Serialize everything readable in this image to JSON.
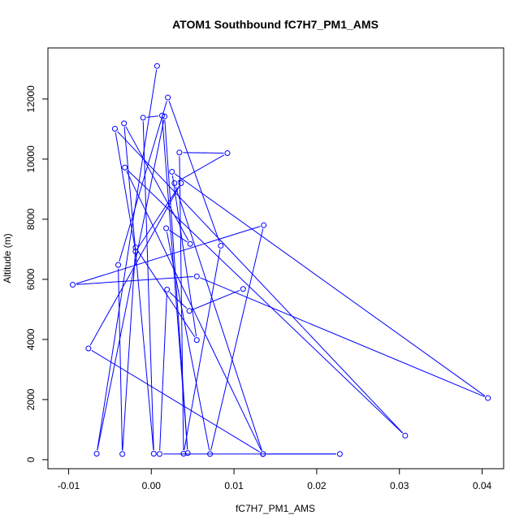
{
  "chart_data": {
    "type": "scatter",
    "title": "ATOM1 Southbound fC7H7_PM1_AMS",
    "xlabel": "fC7H7_PM1_AMS",
    "ylabel": "Altitude (m)",
    "xlim": [
      -0.0125,
      0.0426
    ],
    "ylim": [
      -300,
      13700
    ],
    "x_ticks": [
      -0.01,
      0.0,
      0.01,
      0.02,
      0.03,
      0.04
    ],
    "x_tick_labels": [
      "-0.01",
      "0.00",
      "0.01",
      "0.02",
      "0.03",
      "0.04"
    ],
    "y_ticks": [
      0,
      2000,
      4000,
      6000,
      8000,
      10000,
      12000
    ],
    "y_tick_labels": [
      "0",
      "2000",
      "4000",
      "6000",
      "8000",
      "10000",
      "12000"
    ],
    "grid": false,
    "connected": true,
    "series": [
      {
        "color": "#0000ff",
        "points": [
          [
            0.0007,
            13100
          ],
          [
            -0.0066,
            200
          ],
          [
            0.0016,
            11420
          ],
          [
            0.0044,
            220
          ],
          [
            0.0013,
            11450
          ],
          [
            -0.001,
            11380
          ],
          [
            0.0003,
            200
          ],
          [
            -0.0033,
            11190
          ],
          [
            0.0047,
            7180
          ],
          [
            0.0018,
            7700
          ],
          [
            0.0071,
            190
          ],
          [
            0.0136,
            7800
          ],
          [
            -0.0095,
            5820
          ],
          [
            0.0055,
            6100
          ],
          [
            0.0407,
            2050
          ],
          [
            0.0025,
            9580
          ],
          [
            0.0055,
            3980
          ],
          [
            -0.0019,
            7060
          ],
          [
            -0.0035,
            190
          ],
          [
            -0.004,
            6480
          ],
          [
            0.002,
            12050
          ],
          [
            0.0084,
            7120
          ],
          [
            0.0039,
            200
          ],
          [
            0.0034,
            10220
          ],
          [
            0.0092,
            10200
          ],
          [
            0.0028,
            9200
          ],
          [
            0.0135,
            190
          ],
          [
            -0.0032,
            9720
          ],
          [
            0.0307,
            800
          ],
          [
            -0.0044,
            11010
          ],
          [
            -0.0019,
            6930
          ],
          [
            0.0036,
            9200
          ],
          [
            -0.0076,
            3700
          ],
          [
            0.0135,
            190
          ],
          [
            0.0228,
            190
          ],
          [
            0.001,
            190
          ],
          [
            0.0019,
            5660
          ],
          [
            0.0046,
            4950
          ],
          [
            0.0111,
            5680
          ]
        ]
      }
    ]
  }
}
